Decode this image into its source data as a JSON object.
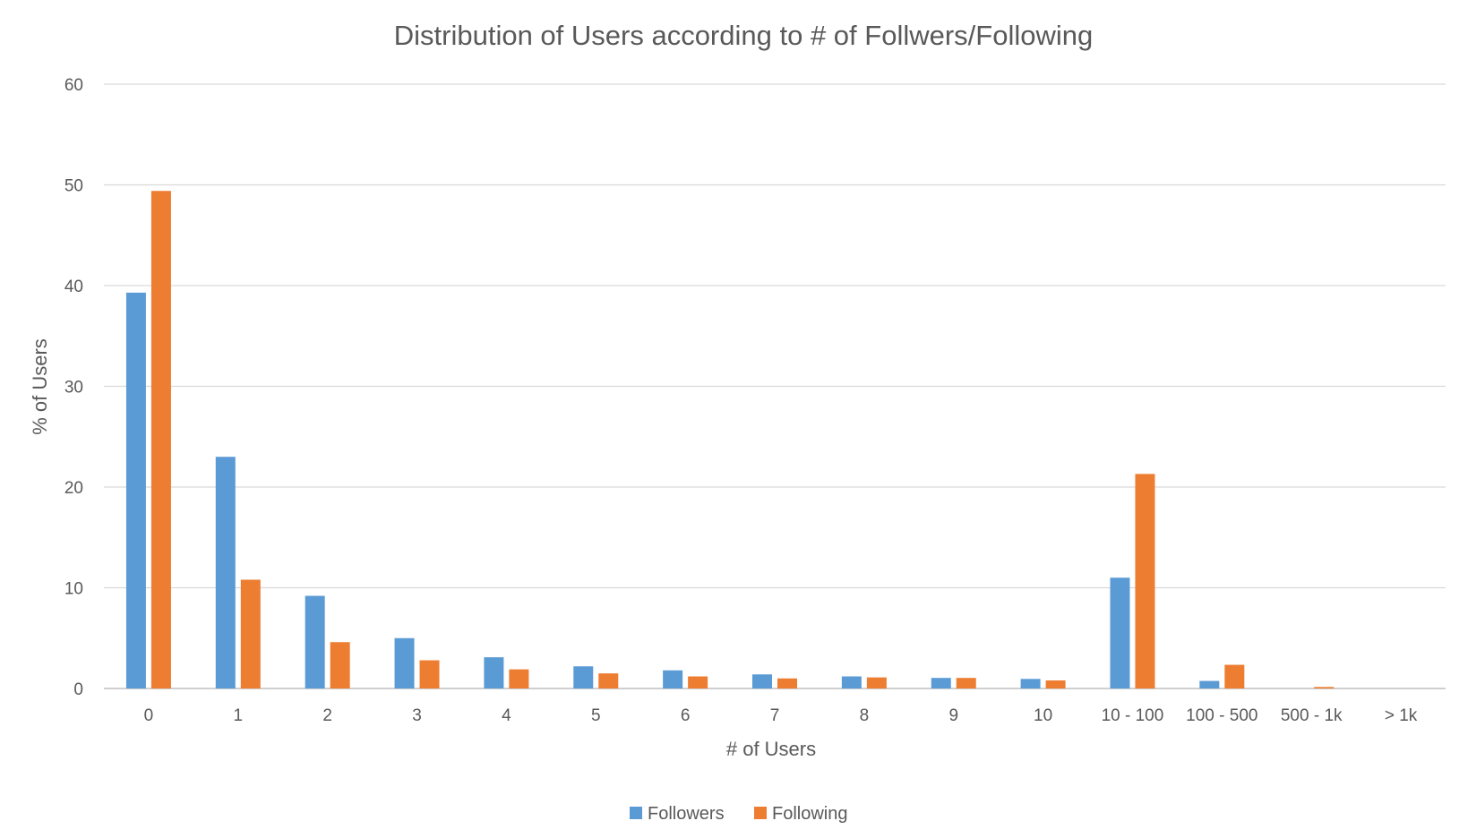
{
  "chart_data": {
    "type": "bar",
    "title": "Distribution of Users according to # of Follwers/Following",
    "xlabel": "# of Users",
    "ylabel": "% of Users",
    "ylim": [
      0,
      60
    ],
    "yticks": [
      "0",
      "10",
      "20",
      "30",
      "40",
      "50",
      "60"
    ],
    "grid": true,
    "legend_position": "bottom",
    "categories": [
      "0",
      "1",
      "2",
      "3",
      "4",
      "5",
      "6",
      "7",
      "8",
      "9",
      "10",
      "10 - 100",
      "100 - 500",
      "500 - 1k",
      "> 1k"
    ],
    "series": [
      {
        "name": "Followers",
        "color": "#5b9bd5",
        "values": [
          39.3,
          23.0,
          9.2,
          5.0,
          3.1,
          2.2,
          1.8,
          1.4,
          1.2,
          1.05,
          0.95,
          11.0,
          0.75,
          0.0,
          0.0
        ]
      },
      {
        "name": "Following",
        "color": "#ed7d31",
        "values": [
          49.4,
          10.8,
          4.6,
          2.8,
          1.9,
          1.5,
          1.2,
          1.0,
          1.1,
          1.05,
          0.8,
          21.3,
          2.35,
          0.15,
          0.0
        ]
      }
    ]
  }
}
